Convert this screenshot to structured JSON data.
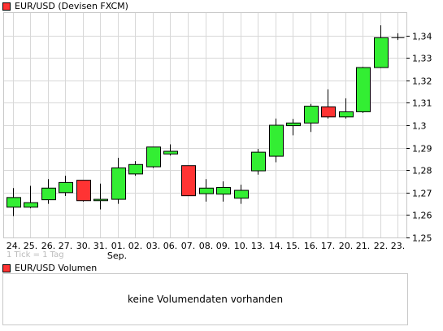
{
  "price_legend": {
    "label": "EUR/USD (Devisen FXCM)",
    "color": "#ff3333"
  },
  "volume_legend": {
    "label": "EUR/USD Volumen",
    "color": "#ff3333"
  },
  "tick_note": "1 Tick = 1 Tag",
  "volume_message": "keine Volumendaten vorhanden",
  "month_label": "Sep.",
  "colors": {
    "up": "#33ee33",
    "down": "#ff3333",
    "grid": "#d8d8d8"
  },
  "chart_data": {
    "type": "candlestick",
    "ylim": [
      1.25,
      1.35
    ],
    "yticks": [
      "1,25",
      "1,26",
      "1,27",
      "1,28",
      "1,29",
      "1,3",
      "1,31",
      "1,32",
      "1,33",
      "1,34"
    ],
    "ytick_values": [
      1.25,
      1.26,
      1.27,
      1.28,
      1.29,
      1.3,
      1.31,
      1.32,
      1.33,
      1.34
    ],
    "grid": true,
    "categories": [
      "24.",
      "25.",
      "26.",
      "27.",
      "30.",
      "31.",
      "01.",
      "02.",
      "03.",
      "06.",
      "07.",
      "08.",
      "09.",
      "10.",
      "13.",
      "14.",
      "15.",
      "16.",
      "17.",
      "20.",
      "21.",
      "22.",
      "23."
    ],
    "open": [
      1.2635,
      1.2635,
      1.2668,
      1.27,
      1.2755,
      1.2664,
      1.267,
      1.2783,
      1.2815,
      1.2872,
      1.282,
      1.2695,
      1.2693,
      1.2675,
      1.2797,
      1.2862,
      1.2998,
      1.301,
      1.3082,
      1.3037,
      1.306,
      1.3257,
      1.339
    ],
    "high": [
      1.272,
      1.273,
      1.276,
      1.2775,
      1.2755,
      1.274,
      1.2855,
      1.284,
      1.29,
      1.2915,
      1.282,
      1.276,
      1.275,
      1.2735,
      1.2895,
      1.303,
      1.3028,
      1.3095,
      1.316,
      1.312,
      1.326,
      1.3445,
      1.341
    ],
    "low": [
      1.2595,
      1.263,
      1.265,
      1.2685,
      1.266,
      1.2625,
      1.265,
      1.2775,
      1.281,
      1.2865,
      1.2685,
      1.266,
      1.266,
      1.265,
      1.278,
      1.2835,
      1.2955,
      1.297,
      1.303,
      1.303,
      1.3055,
      1.3255,
      1.338
    ],
    "close": [
      1.2678,
      1.2655,
      1.272,
      1.2745,
      1.2664,
      1.267,
      1.281,
      1.2825,
      1.2903,
      1.2884,
      1.2686,
      1.272,
      1.2723,
      1.271,
      1.288,
      1.3,
      1.301,
      1.3085,
      1.3037,
      1.306,
      1.3257,
      1.339,
      1.339
    ]
  }
}
